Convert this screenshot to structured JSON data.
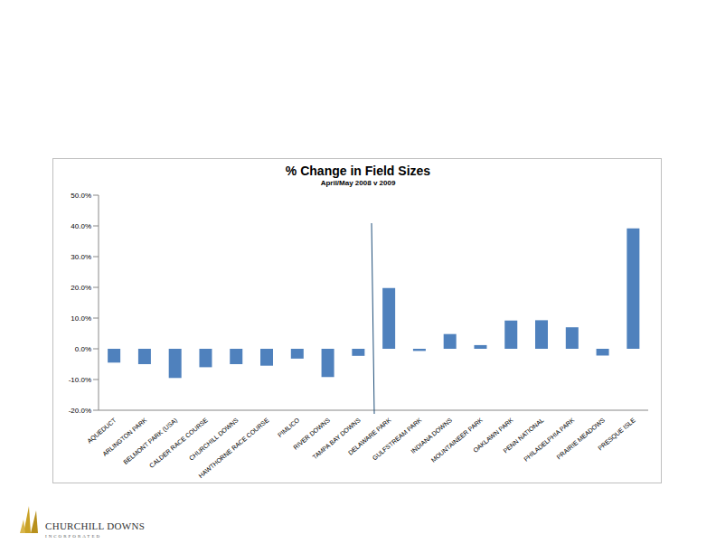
{
  "chart_data": {
    "type": "bar",
    "title": "% Change in Field Sizes",
    "subtitle": "April/May 2008 v 2009",
    "categories": [
      "AQUEDUCT",
      "ARLINGTON PARK",
      "BELMONT PARK (USA)",
      "CALDER RACE COURSE",
      "CHURCHILL DOWNS",
      "HAWTHORNE RACE COURSE",
      "PIMLICO",
      "RIVER DOWNS",
      "TAMPA BAY DOWNS",
      "DELAWARE PARK",
      "GULFSTREAM PARK",
      "INDIANA DOWNS",
      "MOUNTAINEER PARK",
      "OAKLAWN PARK",
      "PENN NATIONAL",
      "PHILADELPHIA PARK",
      "PRAIRIE MEADOWS",
      "PRESQUE ISLE"
    ],
    "values": [
      -4.5,
      -5.0,
      -9.5,
      -6.0,
      -5.0,
      -5.5,
      -3.2,
      -9.2,
      -2.3,
      19.8,
      -0.7,
      4.8,
      1.2,
      9.2,
      9.3,
      7.0,
      -2.2,
      39.2
    ],
    "color": "#4f81bd",
    "ylim": [
      -20,
      50
    ],
    "yticks": [
      {
        "value": -20,
        "label": "-20.0%"
      },
      {
        "value": -10,
        "label": "-10.0%"
      },
      {
        "value": 0,
        "label": "0.0%"
      },
      {
        "value": 10,
        "label": "10.0%"
      },
      {
        "value": 20,
        "label": "20.0%"
      },
      {
        "value": 30,
        "label": "30.0%"
      },
      {
        "value": 40,
        "label": "40.0%"
      },
      {
        "value": 50,
        "label": "50.0%"
      }
    ],
    "grid": false
  },
  "logo": {
    "name": "CHURCHILL DOWNS",
    "subtext": "INCORPORATED"
  }
}
